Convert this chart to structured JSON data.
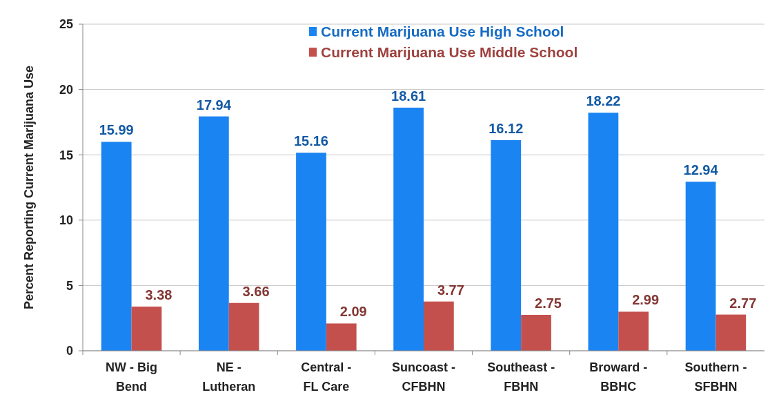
{
  "chart_data": {
    "type": "bar",
    "ylabel": "Percent Reporting Current Marijuana Use",
    "categories": [
      "NW - Big Bend",
      "NE - Lutheran",
      "Central - FL Care",
      "Suncoast - CFBHN",
      "Southeast - FBHN",
      "Broward - BBHC",
      "Southern - SFBHN"
    ],
    "series": [
      {
        "name": "Current Marijuana Use High School",
        "color": "#1a84f2",
        "values": [
          15.99,
          17.94,
          15.16,
          18.61,
          16.12,
          18.22,
          12.94
        ]
      },
      {
        "name": "Current Marijuana Use Middle School",
        "color": "#c4504d",
        "values": [
          3.38,
          3.66,
          2.09,
          3.77,
          2.75,
          2.99,
          2.77
        ]
      }
    ],
    "ylim": [
      0,
      25
    ],
    "yticks": [
      0,
      5,
      10,
      15,
      20,
      25
    ],
    "grid": "y",
    "legend": "top",
    "data_labels": true
  }
}
